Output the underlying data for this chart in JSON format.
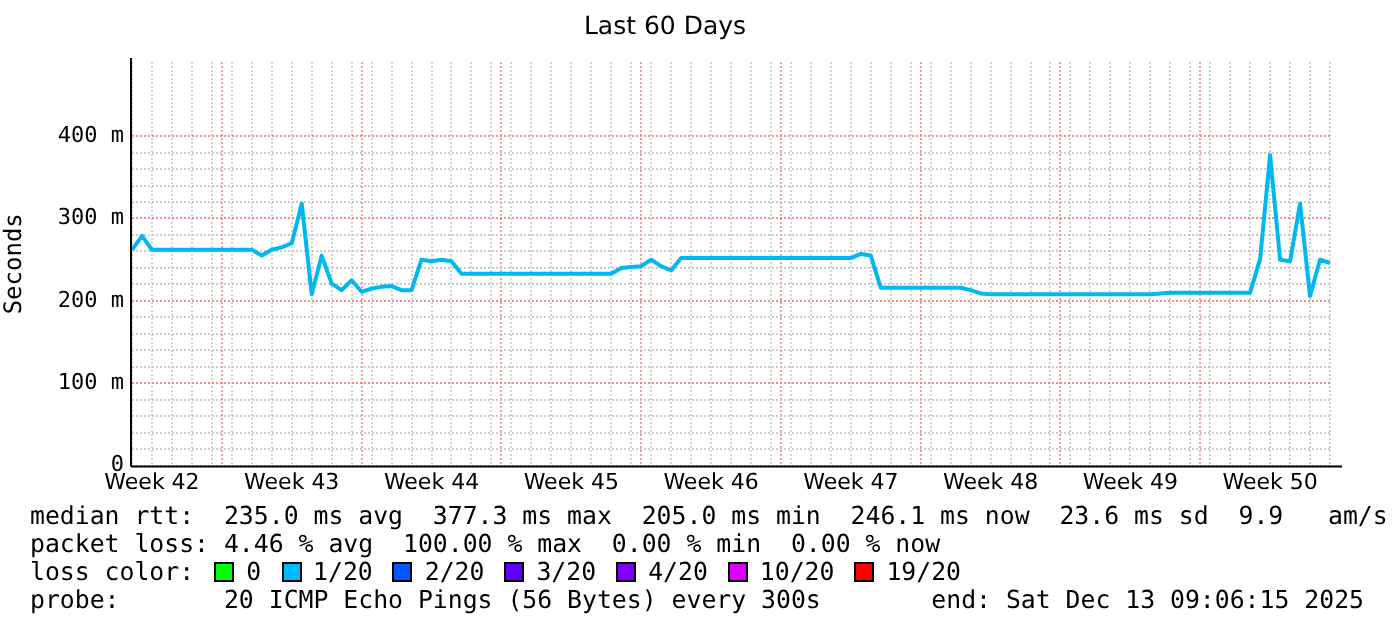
{
  "chart_data": {
    "type": "line",
    "title": "Last 60 Days",
    "ylabel": "Seconds",
    "categories": [
      null,
      null,
      "Week 42",
      null,
      null,
      null,
      null,
      null,
      null,
      null,
      null,
      null,
      null,
      null,
      null,
      null,
      "Week 43",
      null,
      null,
      null,
      null,
      null,
      null,
      null,
      null,
      null,
      null,
      null,
      null,
      null,
      "Week 44",
      null,
      null,
      null,
      null,
      null,
      null,
      null,
      null,
      null,
      null,
      null,
      null,
      null,
      "Week 45",
      null,
      null,
      null,
      null,
      null,
      null,
      null,
      null,
      null,
      null,
      null,
      null,
      null,
      "Week 46",
      null,
      null,
      null,
      null,
      null,
      null,
      null,
      null,
      null,
      null,
      null,
      null,
      null,
      "Week 47",
      null,
      null,
      null,
      null,
      null,
      null,
      null,
      null,
      null,
      null,
      null,
      null,
      null,
      "Week 48",
      null,
      null,
      null,
      null,
      null,
      null,
      null,
      null,
      null,
      null,
      null,
      null,
      null,
      "Week 49",
      null,
      null,
      null,
      null,
      null,
      null,
      null,
      null,
      null,
      null,
      null,
      null,
      null,
      "Week 50",
      null,
      null,
      null,
      null,
      null,
      null
    ],
    "ylim": [
      0,
      490
    ],
    "yticks": [
      0,
      {
        "value": 100,
        "label": "100 m"
      },
      {
        "value": 200,
        "label": "200 m"
      },
      {
        "value": 300,
        "label": "300 m"
      },
      {
        "value": 400,
        "label": "400 m"
      }
    ],
    "grid": true,
    "legend": false,
    "series": [
      {
        "color": "#00b8f0",
        "values": [
          262,
          279,
          262,
          262,
          262,
          262,
          262,
          262,
          262,
          262,
          262,
          262,
          262,
          255,
          262,
          265,
          270,
          318,
          208,
          255,
          221,
          213,
          225,
          211,
          215,
          217,
          218,
          213,
          213,
          250,
          248,
          250,
          248,
          233,
          233,
          233,
          233,
          233,
          233,
          233,
          233,
          233,
          233,
          233,
          233,
          233,
          233,
          233,
          233,
          240,
          241,
          242,
          250,
          242,
          237,
          252,
          252,
          252,
          252,
          252,
          252,
          252,
          252,
          252,
          252,
          252,
          252,
          252,
          252,
          252,
          252,
          252,
          252,
          257,
          255,
          216,
          216,
          216,
          216,
          216,
          216,
          216,
          216,
          216,
          213,
          209,
          208,
          208,
          208,
          208,
          208,
          208,
          208,
          208,
          208,
          208,
          208,
          208,
          208,
          208,
          208,
          208,
          208,
          209,
          210,
          210,
          210,
          210,
          210,
          210,
          210,
          210,
          210,
          251,
          377,
          250,
          248,
          318,
          206,
          250,
          246
        ]
      }
    ],
    "annotations": [
      "median rtt:  235.0 ms avg  377.3 ms max  205.0 ms min  246.1 ms now  23.6 ms sd  9.9   am/s",
      "packet loss: 4.46 % avg  100.00 % max  0.00 % min  0.00 % now",
      "loss color:",
      "0",
      "1/20",
      "2/20",
      "3/20",
      "4/20",
      "10/20",
      "19/20",
      "probe:       20 ICMP Echo Pings (56 Bytes) every 300s",
      "end: Sat Dec 13 09:06:15 2025"
    ]
  }
}
